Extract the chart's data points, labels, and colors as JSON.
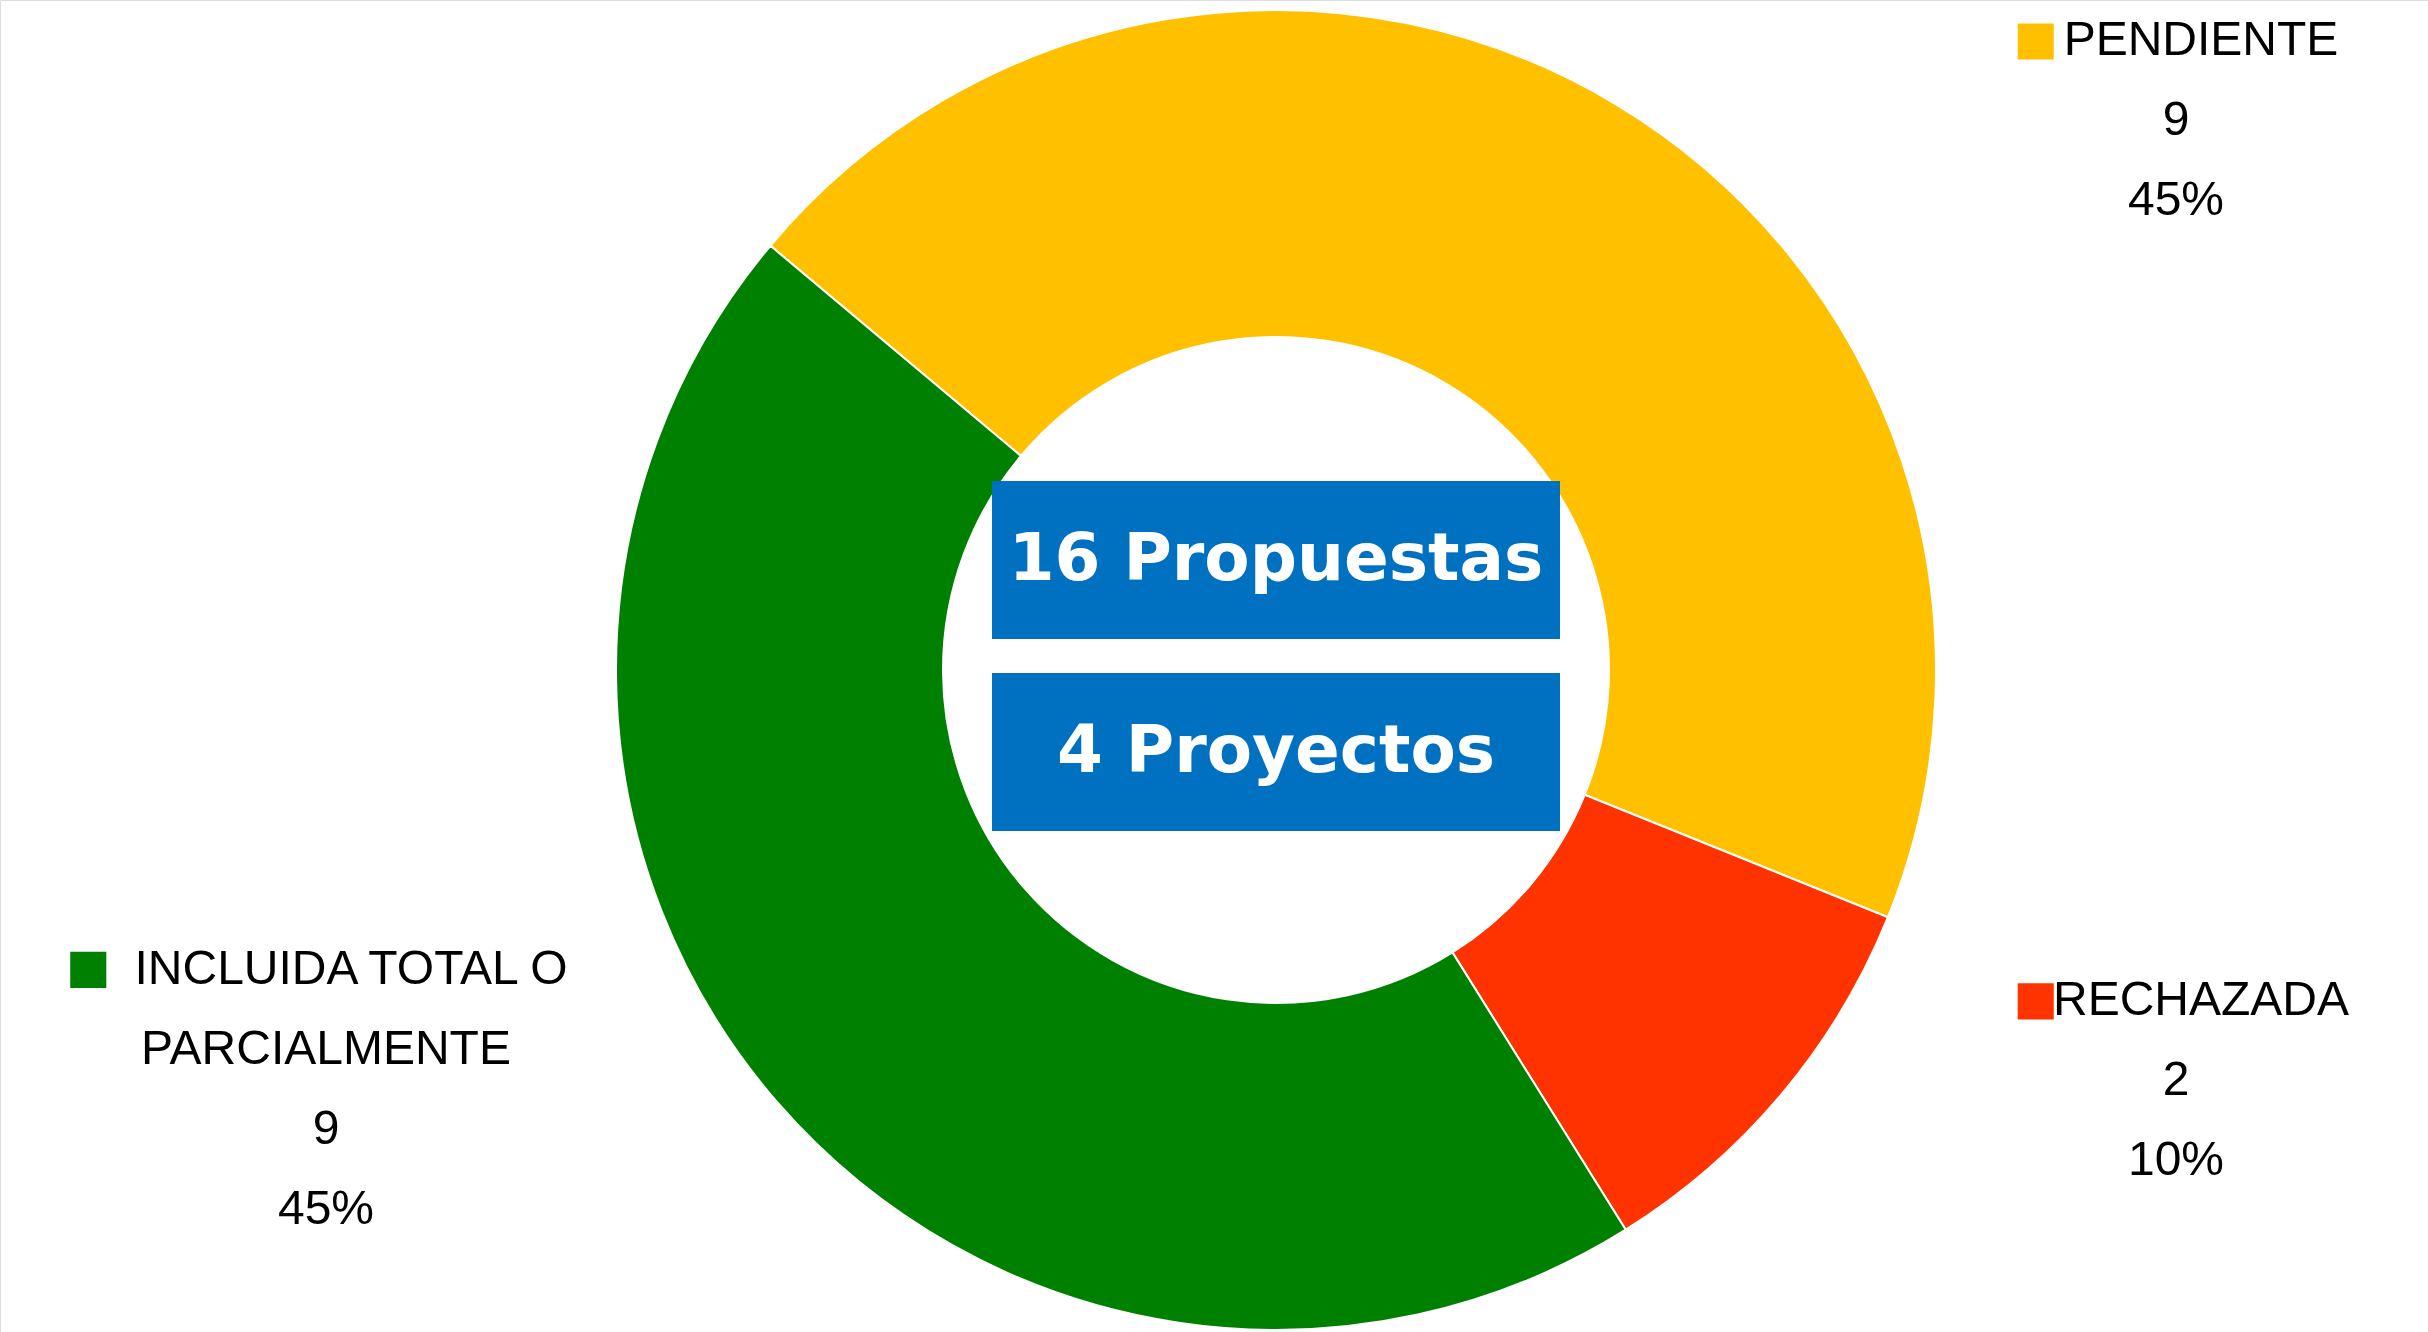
{
  "chart_data": {
    "type": "donut",
    "categories": [
      "PENDIENTE",
      "RECHAZADA",
      "INCLUIDA TOTAL O PARCIALMENTE"
    ],
    "values": [
      45,
      10,
      45
    ],
    "colors": [
      "#ffc000",
      "#ff3300",
      "#008000"
    ],
    "value_labels": [
      "9\n45%",
      "2\n10%",
      "9\n45%"
    ],
    "legend": "top left",
    "annotations": [
      "16 Propuestas",
      "4  Proyectos"
    ]
  }
}
